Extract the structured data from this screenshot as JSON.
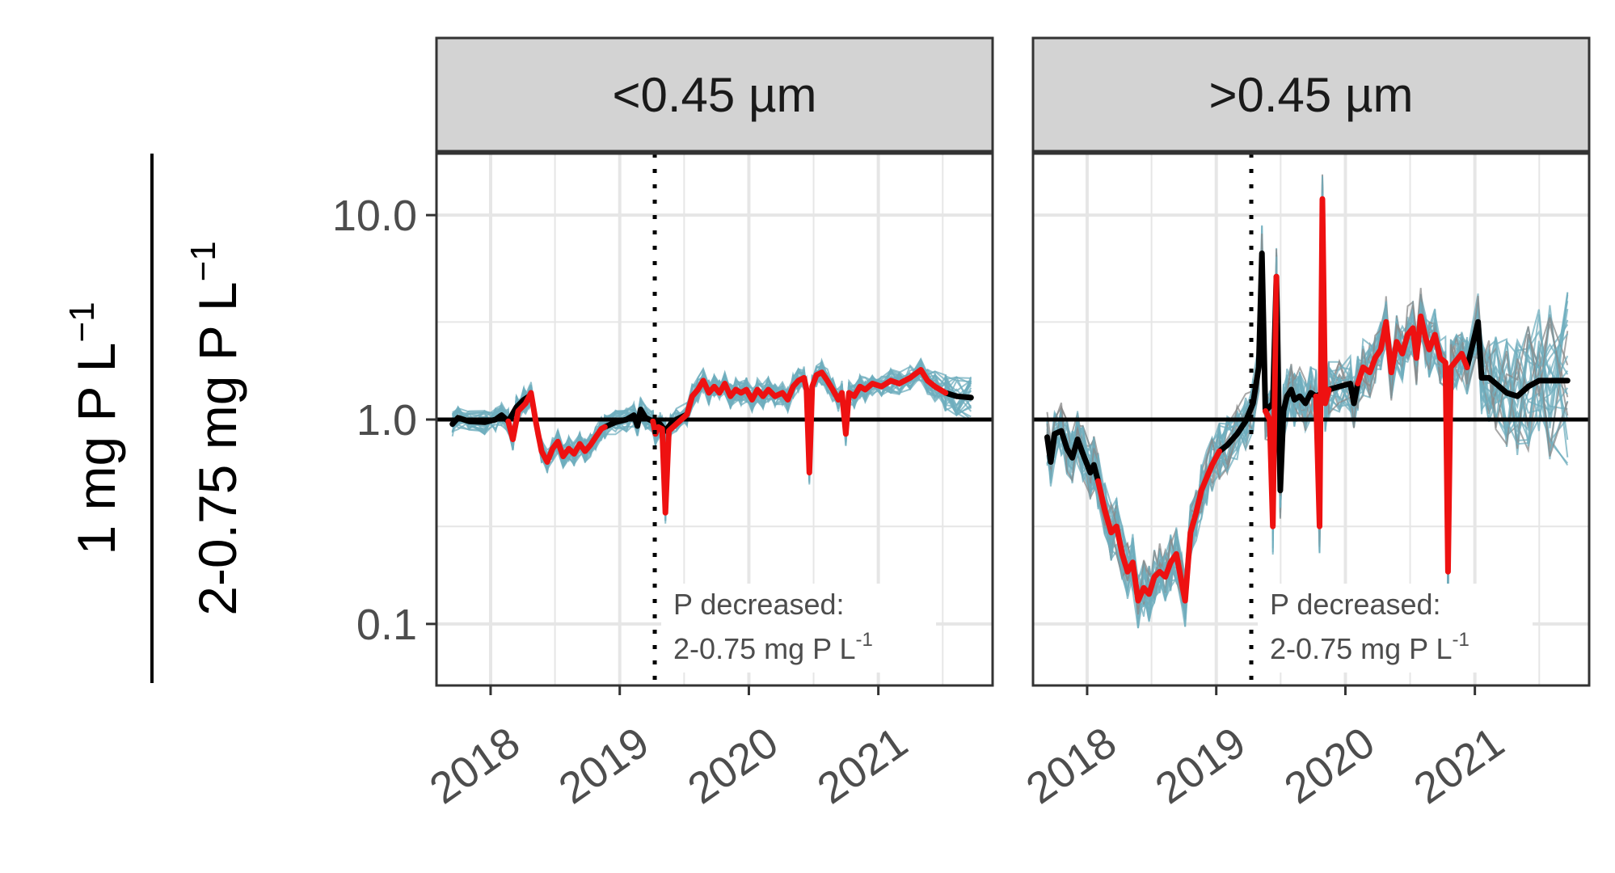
{
  "colors": {
    "black_line": "#000000",
    "red_line": "#ee1111",
    "ensemble": "#6fadbd",
    "ensemble_gray": "#8a8a8a",
    "strip_bg": "#d3d3d3",
    "grid": "#e6e6e6",
    "axis_text": "#4d4d4d"
  },
  "ylabel": {
    "numerator": "1 mg P L",
    "numerator_sup": "−1",
    "denominator": "2-0.75 mg P L",
    "denominator_sup": "−1"
  },
  "chart_data": [
    {
      "type": "line",
      "panel": "<0.45 µm",
      "scale": "log10",
      "ylim": [
        0.05,
        20
      ],
      "yticks": [
        {
          "v": 0.1,
          "label": "0.1"
        },
        {
          "v": 1.0,
          "label": "1.0"
        },
        {
          "v": 10.0,
          "label": "10.0"
        }
      ],
      "xlim": [
        "2017-08-01",
        "2021-11-20"
      ],
      "xticks": [
        "2018",
        "2019",
        "2020",
        "2021"
      ],
      "reference_line": 1.0,
      "vline": "2019-04-10",
      "annotation": {
        "line1": "P decreased:",
        "line2": "2-0.75 mg P L",
        "sup": "-1"
      },
      "series": [
        {
          "color": "black",
          "points": [
            [
              "2017-09-15",
              0.95
            ],
            [
              "2017-10-01",
              1.02
            ],
            [
              "2017-11-01",
              0.98
            ],
            [
              "2017-12-15",
              0.97
            ],
            [
              "2018-01-15",
              1.0
            ],
            [
              "2018-02-01",
              1.05
            ],
            [
              "2018-02-20",
              0.98
            ],
            [
              "2018-03-15",
              1.15
            ],
            [
              "2018-04-05",
              1.25
            ],
            [
              "2018-04-20",
              1.3
            ],
            [
              "2018-11-20",
              0.92
            ],
            [
              "2018-12-20",
              0.97
            ],
            [
              "2019-01-20",
              1.0
            ],
            [
              "2019-02-10",
              1.05
            ],
            [
              "2019-02-20",
              0.93
            ],
            [
              "2019-03-01",
              1.12
            ],
            [
              "2019-03-15",
              1.02
            ],
            [
              "2019-04-05",
              0.98
            ],
            [
              "2019-04-25",
              0.95
            ],
            [
              "2019-05-10",
              0.88
            ],
            [
              "2019-05-25",
              0.95
            ],
            [
              "2019-06-10",
              1.0
            ],
            [
              "2019-07-10",
              1.06
            ],
            [
              "2021-07-10",
              1.35
            ],
            [
              "2021-08-10",
              1.3
            ],
            [
              "2021-09-20",
              1.28
            ]
          ]
        },
        {
          "color": "red",
          "points": [
            [
              "2018-02-20",
              0.98
            ],
            [
              "2018-03-05",
              0.8
            ],
            [
              "2018-03-20",
              1.1
            ],
            [
              "2018-04-10",
              1.2
            ],
            [
              "2018-04-25",
              1.35
            ],
            [
              "2018-05-10",
              0.95
            ],
            [
              "2018-05-25",
              0.7
            ],
            [
              "2018-06-10",
              0.62
            ],
            [
              "2018-06-25",
              0.72
            ],
            [
              "2018-07-10",
              0.78
            ],
            [
              "2018-07-25",
              0.66
            ],
            [
              "2018-08-10",
              0.72
            ],
            [
              "2018-08-25",
              0.68
            ],
            [
              "2018-09-10",
              0.76
            ],
            [
              "2018-09-25",
              0.7
            ],
            [
              "2018-10-10",
              0.75
            ],
            [
              "2018-10-25",
              0.82
            ],
            [
              "2018-11-10",
              0.9
            ],
            [
              "2018-11-20",
              0.92
            ],
            [
              "2019-04-05",
              0.98
            ],
            [
              "2019-04-12",
              0.85
            ],
            [
              "2019-04-20",
              0.92
            ],
            [
              "2019-05-01",
              0.9
            ],
            [
              "2019-05-10",
              0.35
            ],
            [
              "2019-05-20",
              0.88
            ],
            [
              "2019-07-10",
              1.06
            ],
            [
              "2019-07-25",
              1.3
            ],
            [
              "2019-08-10",
              1.4
            ],
            [
              "2019-08-25",
              1.55
            ],
            [
              "2019-09-10",
              1.35
            ],
            [
              "2019-09-25",
              1.45
            ],
            [
              "2019-10-10",
              1.35
            ],
            [
              "2019-10-25",
              1.5
            ],
            [
              "2019-11-10",
              1.3
            ],
            [
              "2019-11-25",
              1.4
            ],
            [
              "2019-12-10",
              1.35
            ],
            [
              "2019-12-25",
              1.4
            ],
            [
              "2020-01-10",
              1.25
            ],
            [
              "2020-01-25",
              1.4
            ],
            [
              "2020-02-10",
              1.3
            ],
            [
              "2020-02-25",
              1.4
            ],
            [
              "2020-03-15",
              1.3
            ],
            [
              "2020-04-05",
              1.35
            ],
            [
              "2020-04-20",
              1.25
            ],
            [
              "2020-05-05",
              1.45
            ],
            [
              "2020-05-20",
              1.55
            ],
            [
              "2020-06-05",
              1.6
            ],
            [
              "2020-06-12",
              1.4
            ],
            [
              "2020-06-20",
              0.55
            ],
            [
              "2020-06-28",
              1.45
            ],
            [
              "2020-07-10",
              1.65
            ],
            [
              "2020-07-25",
              1.7
            ],
            [
              "2020-08-10",
              1.55
            ],
            [
              "2020-08-25",
              1.4
            ],
            [
              "2020-09-10",
              1.25
            ],
            [
              "2020-09-20",
              1.35
            ],
            [
              "2020-10-01",
              0.85
            ],
            [
              "2020-10-10",
              1.35
            ],
            [
              "2020-10-25",
              1.3
            ],
            [
              "2020-11-10",
              1.45
            ],
            [
              "2020-11-25",
              1.4
            ],
            [
              "2020-12-15",
              1.5
            ],
            [
              "2021-01-10",
              1.45
            ],
            [
              "2021-02-05",
              1.55
            ],
            [
              "2021-03-01",
              1.5
            ],
            [
              "2021-04-01",
              1.6
            ],
            [
              "2021-05-01",
              1.75
            ],
            [
              "2021-05-20",
              1.55
            ],
            [
              "2021-06-10",
              1.45
            ],
            [
              "2021-07-10",
              1.35
            ]
          ]
        }
      ]
    },
    {
      "type": "line",
      "panel": ">0.45 µm",
      "scale": "log10",
      "ylim": [
        0.05,
        20
      ],
      "yticks": [
        {
          "v": 0.1,
          "label": "0.1"
        },
        {
          "v": 1.0,
          "label": "1.0"
        },
        {
          "v": 10.0,
          "label": "10.0"
        }
      ],
      "xlim": [
        "2017-08-01",
        "2021-11-20"
      ],
      "xticks": [
        "2018",
        "2019",
        "2020",
        "2021"
      ],
      "reference_line": 1.0,
      "vline": "2019-04-10",
      "annotation": {
        "line1": "P decreased:",
        "line2": "2-0.75 mg P L",
        "sup": "-1"
      },
      "series": [
        {
          "color": "black",
          "points": [
            [
              "2017-09-10",
              0.82
            ],
            [
              "2017-09-20",
              0.62
            ],
            [
              "2017-10-01",
              0.85
            ],
            [
              "2017-10-20",
              0.88
            ],
            [
              "2017-11-05",
              0.72
            ],
            [
              "2017-11-20",
              0.65
            ],
            [
              "2017-12-05",
              0.8
            ],
            [
              "2017-12-20",
              0.68
            ],
            [
              "2018-01-10",
              0.55
            ],
            [
              "2018-01-20",
              0.6
            ],
            [
              "2018-02-01",
              0.5
            ],
            [
              "2019-01-10",
              0.7
            ],
            [
              "2019-02-01",
              0.75
            ],
            [
              "2019-03-01",
              0.85
            ],
            [
              "2019-03-25",
              0.98
            ],
            [
              "2019-04-15",
              1.2
            ],
            [
              "2019-05-01",
              1.8
            ],
            [
              "2019-05-10",
              6.5
            ],
            [
              "2019-05-20",
              1.1
            ],
            [
              "2019-06-10",
              1.2
            ],
            [
              "2019-06-20",
              5.0
            ],
            [
              "2019-07-01",
              0.45
            ],
            [
              "2019-07-10",
              1.1
            ],
            [
              "2019-07-20",
              1.3
            ],
            [
              "2019-08-01",
              1.4
            ],
            [
              "2019-08-10",
              1.25
            ],
            [
              "2019-08-25",
              1.3
            ],
            [
              "2019-09-10",
              1.2
            ],
            [
              "2019-09-25",
              1.35
            ],
            [
              "2019-10-10",
              1.3
            ],
            [
              "2019-11-15",
              1.4
            ],
            [
              "2019-12-15",
              1.45
            ],
            [
              "2020-01-15",
              1.5
            ],
            [
              "2020-01-25",
              1.2
            ],
            [
              "2020-02-05",
              1.5
            ],
            [
              "2020-12-10",
              1.8
            ],
            [
              "2021-01-10",
              3.0
            ],
            [
              "2021-01-20",
              1.6
            ],
            [
              "2021-02-10",
              1.6
            ],
            [
              "2021-03-01",
              1.5
            ],
            [
              "2021-04-01",
              1.35
            ],
            [
              "2021-05-01",
              1.3
            ],
            [
              "2021-06-01",
              1.45
            ],
            [
              "2021-07-01",
              1.55
            ],
            [
              "2021-08-01",
              1.55
            ],
            [
              "2021-09-20",
              1.55
            ]
          ]
        },
        {
          "color": "red",
          "points": [
            [
              "2018-02-01",
              0.5
            ],
            [
              "2018-02-20",
              0.36
            ],
            [
              "2018-03-10",
              0.28
            ],
            [
              "2018-03-25",
              0.3
            ],
            [
              "2018-04-10",
              0.22
            ],
            [
              "2018-04-25",
              0.18
            ],
            [
              "2018-05-10",
              0.2
            ],
            [
              "2018-05-25",
              0.13
            ],
            [
              "2018-06-10",
              0.15
            ],
            [
              "2018-06-25",
              0.14
            ],
            [
              "2018-07-10",
              0.17
            ],
            [
              "2018-07-25",
              0.18
            ],
            [
              "2018-08-10",
              0.17
            ],
            [
              "2018-08-25",
              0.2
            ],
            [
              "2018-09-10",
              0.22
            ],
            [
              "2018-09-25",
              0.16
            ],
            [
              "2018-10-05",
              0.13
            ],
            [
              "2018-10-20",
              0.28
            ],
            [
              "2018-11-05",
              0.35
            ],
            [
              "2018-11-20",
              0.45
            ],
            [
              "2018-12-05",
              0.52
            ],
            [
              "2018-12-20",
              0.6
            ],
            [
              "2019-01-10",
              0.7
            ],
            [
              "2019-05-20",
              1.1
            ],
            [
              "2019-06-01",
              1.0
            ],
            [
              "2019-06-10",
              0.3
            ],
            [
              "2019-06-20",
              5.0
            ],
            [
              "2019-10-10",
              1.3
            ],
            [
              "2019-10-20",
              0.3
            ],
            [
              "2019-10-28",
              12.0
            ],
            [
              "2019-11-05",
              1.2
            ],
            [
              "2019-11-15",
              1.4
            ],
            [
              "2020-02-05",
              1.5
            ],
            [
              "2020-02-20",
              1.8
            ],
            [
              "2020-03-10",
              1.7
            ],
            [
              "2020-03-25",
              2.0
            ],
            [
              "2020-04-10",
              2.2
            ],
            [
              "2020-04-25",
              3.0
            ],
            [
              "2020-05-10",
              1.7
            ],
            [
              "2020-05-25",
              2.4
            ],
            [
              "2020-06-10",
              2.1
            ],
            [
              "2020-06-25",
              2.6
            ],
            [
              "2020-07-10",
              2.8
            ],
            [
              "2020-07-20",
              2.0
            ],
            [
              "2020-08-01",
              3.2
            ],
            [
              "2020-08-15",
              2.5
            ],
            [
              "2020-08-25",
              2.2
            ],
            [
              "2020-09-10",
              2.6
            ],
            [
              "2020-09-25",
              2.0
            ],
            [
              "2020-10-10",
              1.9
            ],
            [
              "2020-10-17",
              0.18
            ],
            [
              "2020-10-25",
              1.8
            ],
            [
              "2020-11-10",
              1.95
            ],
            [
              "2020-11-25",
              2.1
            ],
            [
              "2020-12-10",
              1.8
            ]
          ]
        }
      ]
    }
  ]
}
